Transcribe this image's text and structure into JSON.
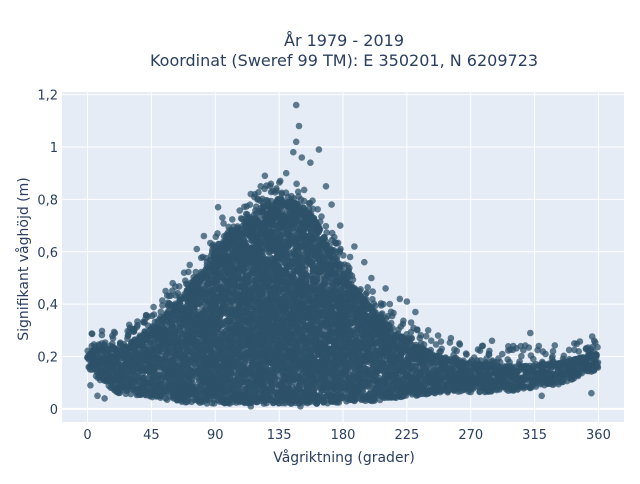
{
  "chart_data": {
    "type": "scatter",
    "title": "År 1979 - 2019",
    "subtitle": "Koordinat (Sweref 99 TM): E 350201, N 6209723",
    "xlabel": "Vågriktning (grader)",
    "ylabel": "Signifikant våghöjd (m)",
    "xlim": [
      -18,
      378
    ],
    "ylim": [
      -0.05,
      1.21
    ],
    "x_ticks": [
      0,
      45,
      90,
      135,
      180,
      225,
      270,
      315,
      360
    ],
    "y_ticks": [
      0,
      0.2,
      0.4,
      0.6,
      0.8,
      1,
      1.2
    ],
    "y_tick_labels": [
      "0",
      "0,2",
      "0,4",
      "0,6",
      "0,8",
      "1",
      "1,2"
    ],
    "grid": true,
    "colors": {
      "marker": "#2e5169",
      "plot_bg": "#e5ecf6",
      "grid": "#ffffff",
      "text": "#2a3f5f"
    },
    "envelope": {
      "description_x": [
        0,
        20,
        40,
        60,
        80,
        100,
        120,
        135,
        150,
        160,
        170,
        185,
        200,
        215,
        230,
        250,
        270,
        300,
        330,
        360
      ],
      "upper_y": [
        0.22,
        0.23,
        0.28,
        0.38,
        0.52,
        0.66,
        0.76,
        0.8,
        0.78,
        0.72,
        0.62,
        0.48,
        0.38,
        0.3,
        0.24,
        0.19,
        0.17,
        0.16,
        0.17,
        0.21
      ],
      "lower_y": [
        0.15,
        0.06,
        0.05,
        0.03,
        0.02,
        0.02,
        0.02,
        0.02,
        0.02,
        0.02,
        0.02,
        0.03,
        0.03,
        0.04,
        0.05,
        0.06,
        0.06,
        0.07,
        0.09,
        0.15
      ]
    },
    "outliers": [
      {
        "x": 147,
        "y": 1.16
      },
      {
        "x": 149,
        "y": 1.08
      },
      {
        "x": 147,
        "y": 1.02
      },
      {
        "x": 145,
        "y": 0.98
      },
      {
        "x": 151,
        "y": 0.96
      },
      {
        "x": 163,
        "y": 0.99
      },
      {
        "x": 157,
        "y": 0.94
      },
      {
        "x": 140,
        "y": 0.9
      },
      {
        "x": 125,
        "y": 0.89
      },
      {
        "x": 122,
        "y": 0.85
      },
      {
        "x": 115,
        "y": 0.82
      },
      {
        "x": 168,
        "y": 0.85
      },
      {
        "x": 172,
        "y": 0.78
      },
      {
        "x": 95,
        "y": 0.73
      },
      {
        "x": 92,
        "y": 0.77
      },
      {
        "x": 82,
        "y": 0.66
      },
      {
        "x": 77,
        "y": 0.61
      },
      {
        "x": 72,
        "y": 0.55
      },
      {
        "x": 68,
        "y": 0.52
      },
      {
        "x": 60,
        "y": 0.48
      },
      {
        "x": 55,
        "y": 0.45
      },
      {
        "x": 178,
        "y": 0.7
      },
      {
        "x": 188,
        "y": 0.62
      },
      {
        "x": 185,
        "y": 0.58
      },
      {
        "x": 195,
        "y": 0.56
      },
      {
        "x": 200,
        "y": 0.5
      },
      {
        "x": 210,
        "y": 0.46
      },
      {
        "x": 213,
        "y": 0.4
      },
      {
        "x": 220,
        "y": 0.42
      },
      {
        "x": 225,
        "y": 0.41
      },
      {
        "x": 231,
        "y": 0.37
      },
      {
        "x": 228,
        "y": 0.33
      },
      {
        "x": 240,
        "y": 0.3
      },
      {
        "x": 247,
        "y": 0.28
      },
      {
        "x": 256,
        "y": 0.27
      },
      {
        "x": 262,
        "y": 0.25
      },
      {
        "x": 278,
        "y": 0.24
      },
      {
        "x": 285,
        "y": 0.26
      },
      {
        "x": 300,
        "y": 0.24
      },
      {
        "x": 312,
        "y": 0.29
      },
      {
        "x": 318,
        "y": 0.24
      },
      {
        "x": 328,
        "y": 0.22
      },
      {
        "x": 343,
        "y": 0.25
      },
      {
        "x": 357,
        "y": 0.26
      },
      {
        "x": 30,
        "y": 0.31
      },
      {
        "x": 40,
        "y": 0.33
      },
      {
        "x": 18,
        "y": 0.27
      },
      {
        "x": 10,
        "y": 0.25
      },
      {
        "x": 3,
        "y": 0.24
      },
      {
        "x": 7,
        "y": 0.05
      },
      {
        "x": 12,
        "y": 0.04
      },
      {
        "x": 2,
        "y": 0.09
      },
      {
        "x": 150,
        "y": 0.01
      },
      {
        "x": 115,
        "y": 0.01
      },
      {
        "x": 320,
        "y": 0.05
      },
      {
        "x": 355,
        "y": 0.06
      }
    ]
  }
}
